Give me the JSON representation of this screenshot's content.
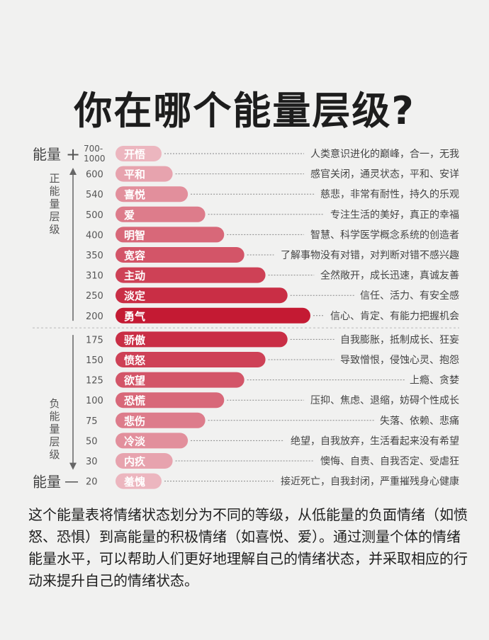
{
  "title": "你在哪个能量层级?",
  "axis": {
    "top_label": "能量",
    "top_sign": "+",
    "bottom_label": "能量",
    "bottom_sign": "—",
    "positive_zone": "正能量层级",
    "negative_zone": "负能量层级"
  },
  "colors": {
    "high": "#c41a33",
    "low": "#ecb6bf",
    "label_text": "#ffffff",
    "divider": "#b9b9b9"
  },
  "chart_data": {
    "type": "bar",
    "orientation": "horizontal",
    "categories": [
      "开悟",
      "平和",
      "喜悦",
      "爱",
      "明智",
      "宽容",
      "主动",
      "淡定",
      "勇气",
      "骄傲",
      "愤怒",
      "欲望",
      "恐慌",
      "悲伤",
      "冷淡",
      "内疚",
      "羞愧"
    ],
    "levels": [
      "700-1000",
      "600",
      "540",
      "500",
      "400",
      "350",
      "310",
      "250",
      "200",
      "175",
      "150",
      "125",
      "100",
      "75",
      "50",
      "30",
      "20"
    ],
    "values": [
      700,
      600,
      540,
      500,
      400,
      350,
      310,
      250,
      200,
      175,
      150,
      125,
      100,
      75,
      50,
      30,
      20
    ],
    "descriptions": [
      "人类意识进化的巅峰，合一，无我",
      "感官关闭，通灵状态，平和、安详",
      "慈悲，非常有耐性，持久的乐观",
      "专注生活的美好，真正的幸福",
      "智慧、科学医学概念系统的创造者",
      "了解事物没有对错，对判断对错不感兴趣",
      "全然敞开，成长迅速，真诚友善",
      "信任、活力、有安全感",
      "信心、肯定、有能力把握机会",
      "自我膨胀，抵制成长、狂妄",
      "导致憎恨，侵蚀心灵、抱怨",
      "上瘾、贪婪",
      "压抑、焦虑、退缩，妨碍个性成长",
      "失落、依赖、悲痛",
      "绝望，自我放弃，生活看起来没有希望",
      "懊悔、自责、自我否定、受虐狂",
      "接近死亡，自我封闭，严重摧残身心健康"
    ]
  },
  "description": "这个能量表将情绪状态划分为不同的等级，从低能量的负面情绪（如愤怒、恐惧）到高能量的积极情绪（如喜悦、爱）。通过测量个体的情绪能量水平，可以帮助人们更好地理解自己的情绪状态，并采取相应的行动来提升自己的情绪状态。"
}
